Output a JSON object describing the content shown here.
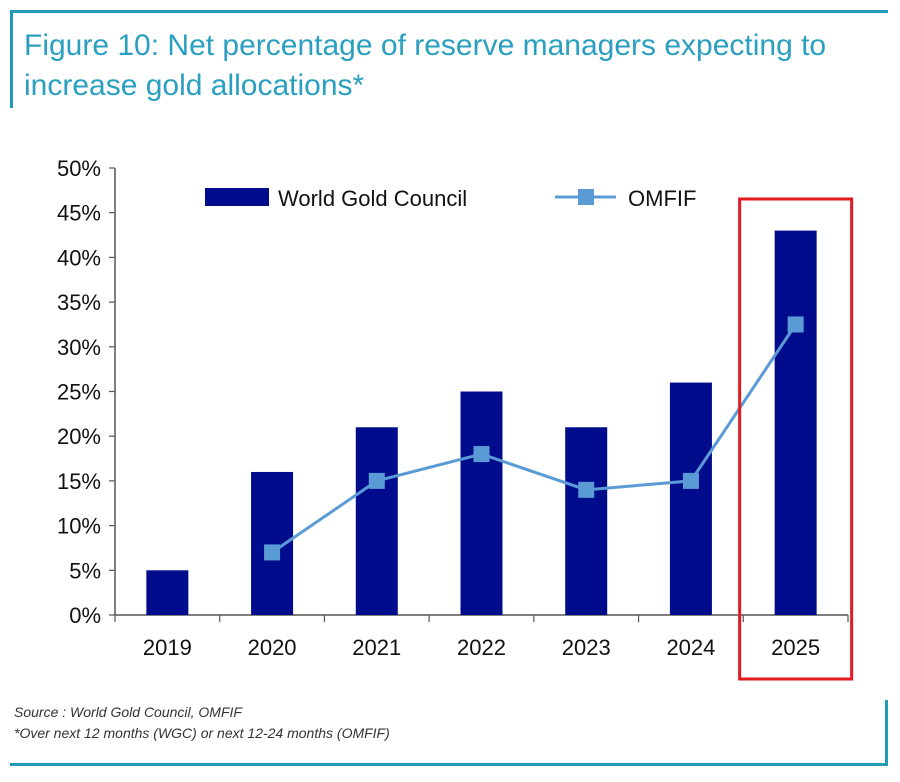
{
  "title": "Figure 10: Net percentage of reserve managers expecting to increase gold allocations*",
  "source": "Source : World Gold Council, OMFIF",
  "note": "*Over next 12 months (WGC) or next 12-24 months (OMFIF)",
  "colors": {
    "title": "#2a9fc0",
    "frame": "#1f9bb7",
    "bar": "#000c8c",
    "line": "#5b9bd5",
    "highlight": "#e3191e"
  },
  "chart_data": {
    "type": "bar",
    "categories": [
      "2019",
      "2020",
      "2021",
      "2022",
      "2023",
      "2024",
      "2025"
    ],
    "series": [
      {
        "name": "World Gold Council",
        "type": "bar",
        "values": [
          5,
          16,
          21,
          25,
          21,
          26,
          43
        ]
      },
      {
        "name": "OMFIF",
        "type": "line",
        "values": [
          null,
          7,
          15,
          18,
          14,
          15,
          32.5
        ]
      }
    ],
    "ylim": [
      0,
      50
    ],
    "yticks": [
      "0%",
      "5%",
      "10%",
      "15%",
      "20%",
      "25%",
      "30%",
      "35%",
      "40%",
      "45%",
      "50%"
    ],
    "legend": "top",
    "grid": false,
    "highlight_category": "2025"
  }
}
